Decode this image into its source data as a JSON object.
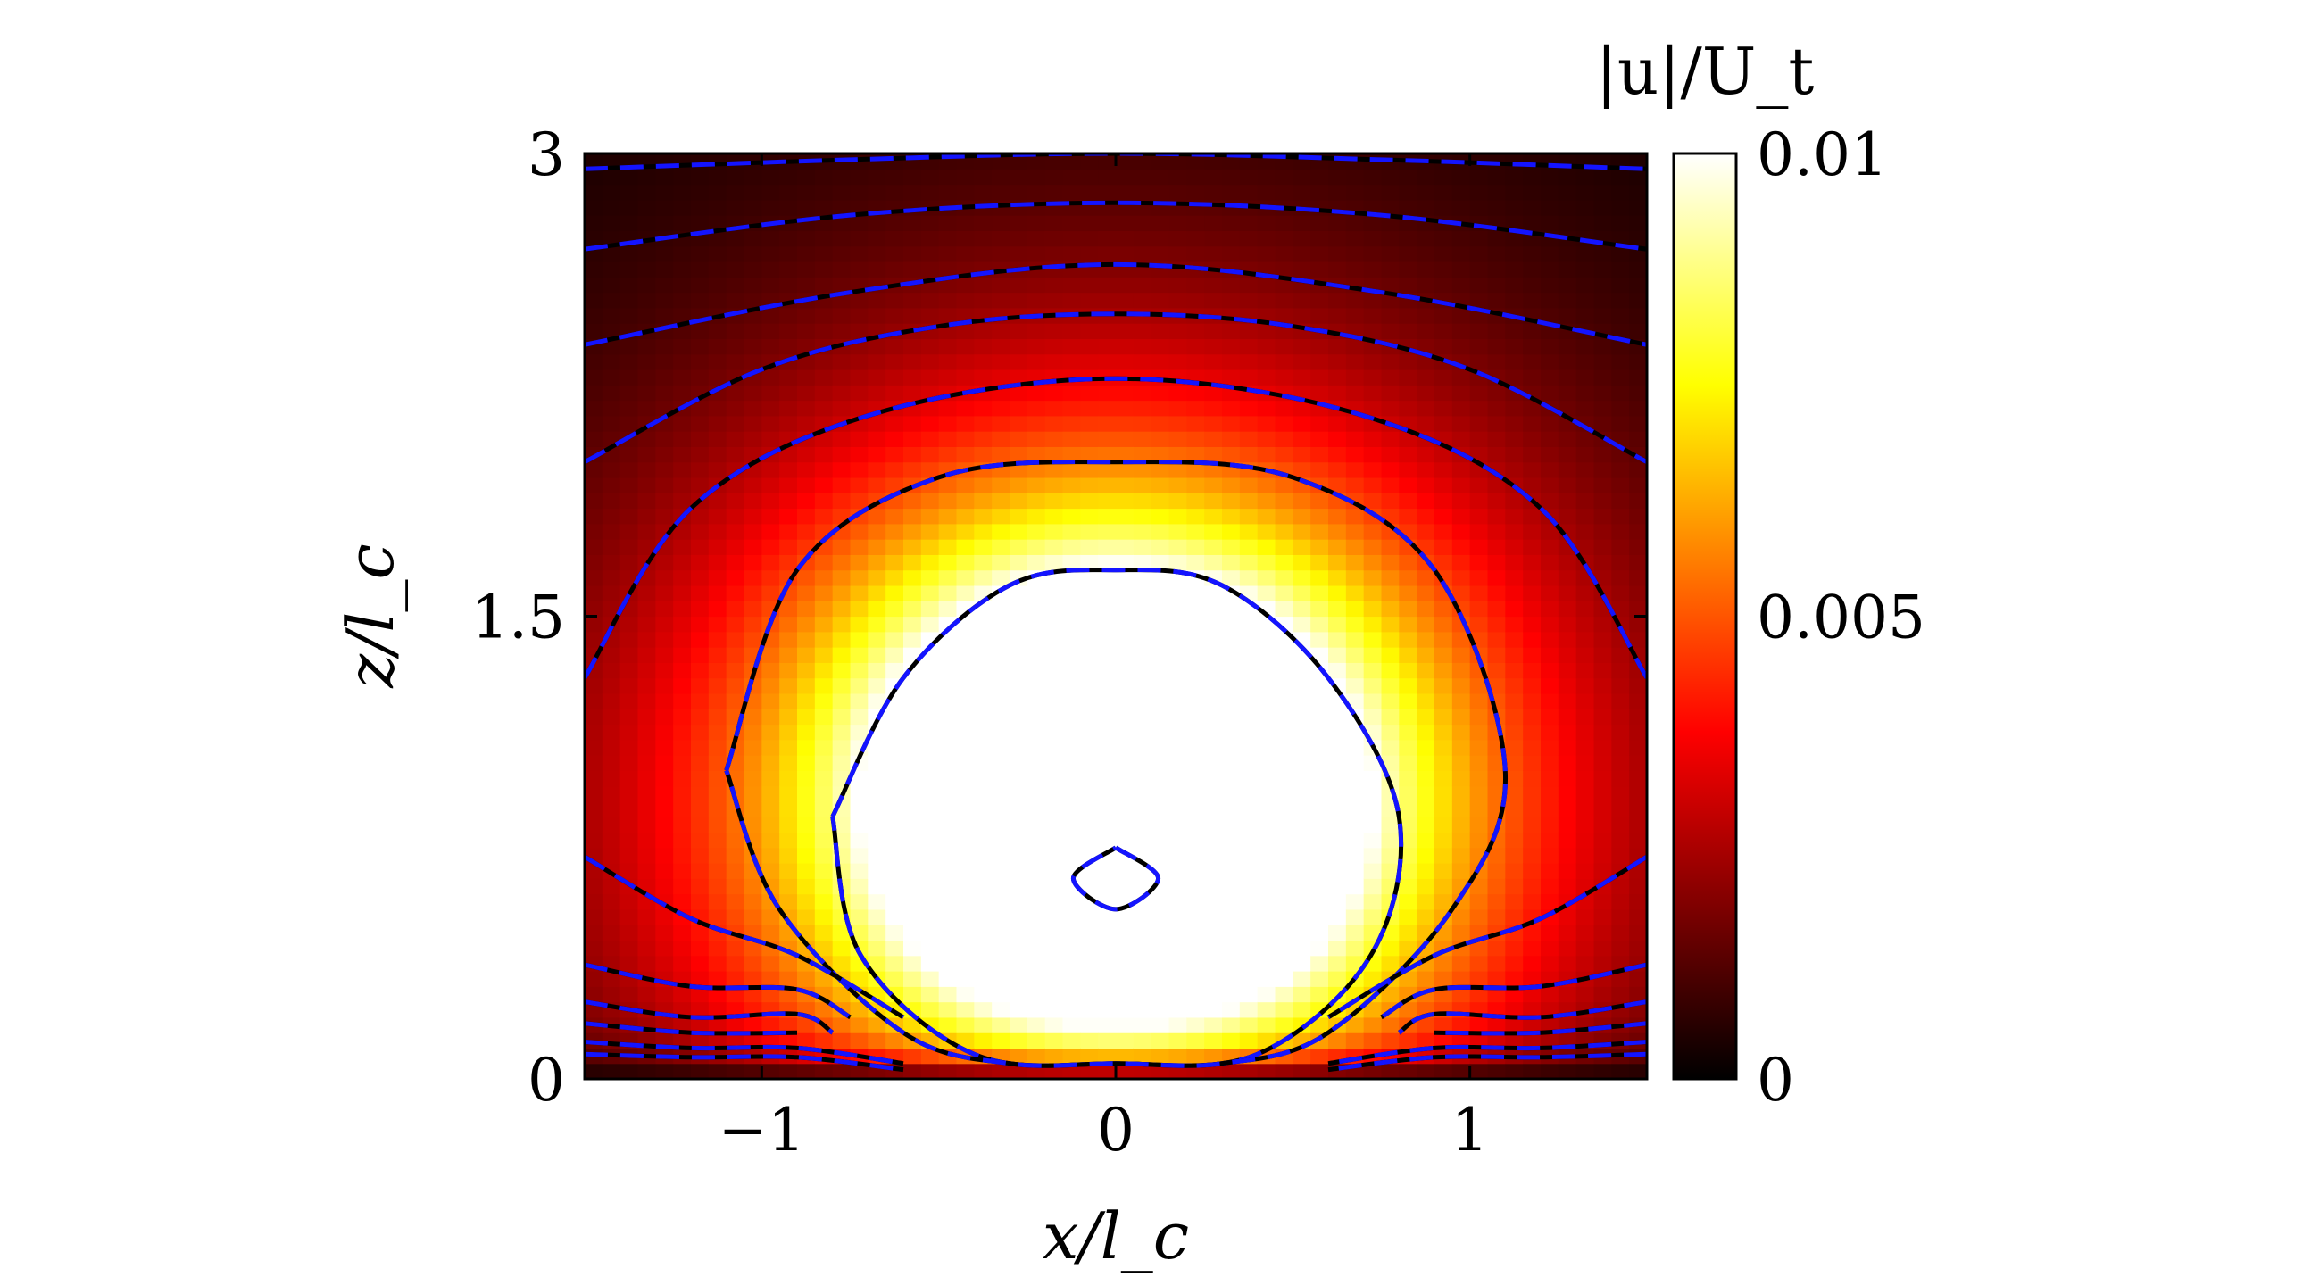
{
  "chart_data": {
    "type": "heatmap",
    "title": "",
    "xlabel": "x/l_c",
    "ylabel": "z/l_c",
    "xlim": [
      -1.5,
      1.5
    ],
    "ylim": [
      0,
      3
    ],
    "x_ticks": [
      -1,
      0,
      1
    ],
    "x_tick_labels": [
      "−1",
      "0",
      "1"
    ],
    "y_ticks": [
      0,
      1.5,
      3
    ],
    "y_tick_labels": [
      "0",
      "1.5",
      "3"
    ],
    "colorbar": {
      "title": "|u|/U_t",
      "range": [
        0,
        0.01
      ],
      "ticks": [
        0,
        0.005,
        0.01
      ],
      "tick_labels": [
        "0",
        "0.005",
        "0.01"
      ],
      "colormap": "hot",
      "colors": [
        "#000000",
        "#ff0000",
        "#ffff00",
        "#ffffff"
      ]
    },
    "field": {
      "description_values": "speed magnitude peaks (saturates above 0.01) in a roughly elliptical region centred near x=0, z=0.9, decaying to ~0.001 at the top boundary",
      "saturated_region_center": [
        0,
        0.9
      ],
      "max_value_clipped": 0.01
    },
    "contour_styles": [
      {
        "name": "solid-black",
        "color": "#000000"
      },
      {
        "name": "dashed-blue",
        "color": "#1414ff"
      }
    ],
    "contours": [
      {
        "label": "inner-ring",
        "x": [
          0,
          0.12,
          0,
          -0.12,
          0
        ],
        "z": [
          0.75,
          0.65,
          0.55,
          0.65,
          0.75
        ]
      },
      {
        "label": "level-1",
        "x": [
          -0.8,
          -0.6,
          -0.3,
          0,
          0.3,
          0.6,
          0.8,
          0.72,
          0.4,
          0,
          -0.4,
          -0.72,
          -0.8
        ],
        "z": [
          0.85,
          1.3,
          1.6,
          1.65,
          1.6,
          1.3,
          0.85,
          0.4,
          0.08,
          0.05,
          0.08,
          0.4,
          0.85
        ]
      },
      {
        "label": "level-2",
        "x": [
          -1.1,
          -0.9,
          -0.5,
          0,
          0.5,
          0.9,
          1.1,
          0.95,
          0.6,
          0.3,
          0,
          -0.3,
          -0.6,
          -0.95,
          -1.1
        ],
        "z": [
          1.0,
          1.65,
          1.95,
          2.0,
          1.95,
          1.65,
          1.0,
          0.55,
          0.15,
          0.05,
          0.05,
          0.05,
          0.15,
          0.55,
          1.0
        ]
      },
      {
        "label": "level-3",
        "x": [
          -1.5,
          -1.2,
          -0.7,
          0,
          0.7,
          1.2,
          1.5
        ],
        "z": [
          1.3,
          1.85,
          2.15,
          2.27,
          2.15,
          1.85,
          1.3
        ]
      },
      {
        "label": "level-4",
        "x": [
          -1.5,
          -1.0,
          -0.5,
          0,
          0.5,
          1.0,
          1.5
        ],
        "z": [
          2.0,
          2.3,
          2.44,
          2.48,
          2.44,
          2.3,
          2.0
        ]
      },
      {
        "label": "level-5",
        "x": [
          -1.5,
          -0.75,
          0,
          0.75,
          1.5
        ],
        "z": [
          2.38,
          2.55,
          2.64,
          2.55,
          2.38
        ]
      },
      {
        "label": "level-6",
        "x": [
          -1.5,
          -0.75,
          0,
          0.75,
          1.5
        ],
        "z": [
          2.69,
          2.8,
          2.84,
          2.8,
          2.69
        ]
      },
      {
        "label": "level-7",
        "x": [
          -1.5,
          -0.75,
          0,
          0.75,
          1.5
        ],
        "z": [
          2.95,
          2.98,
          3.0,
          2.98,
          2.95
        ]
      },
      {
        "label": "wing-1",
        "x": [
          -1.5,
          -1.2,
          -0.9,
          -0.6
        ],
        "z": [
          0.72,
          0.52,
          0.4,
          0.2
        ]
      },
      {
        "label": "wing-1r",
        "x": [
          1.5,
          1.2,
          0.9,
          0.6
        ],
        "z": [
          0.72,
          0.52,
          0.4,
          0.2
        ]
      },
      {
        "label": "wing-2",
        "x": [
          -1.5,
          -1.2,
          -0.9,
          -0.75
        ],
        "z": [
          0.37,
          0.3,
          0.29,
          0.2
        ]
      },
      {
        "label": "wing-2r",
        "x": [
          1.5,
          1.2,
          0.9,
          0.75
        ],
        "z": [
          0.37,
          0.3,
          0.29,
          0.2
        ]
      },
      {
        "label": "wing-3",
        "x": [
          -1.5,
          -1.2,
          -0.9,
          -0.8
        ],
        "z": [
          0.25,
          0.2,
          0.21,
          0.15
        ]
      },
      {
        "label": "wing-3r",
        "x": [
          1.5,
          1.2,
          0.9,
          0.8
        ],
        "z": [
          0.25,
          0.2,
          0.21,
          0.15
        ]
      },
      {
        "label": "wing-4",
        "x": [
          -1.5,
          -1.2,
          -0.9
        ],
        "z": [
          0.18,
          0.15,
          0.15
        ]
      },
      {
        "label": "wing-4r",
        "x": [
          1.5,
          1.2,
          0.9
        ],
        "z": [
          0.18,
          0.15,
          0.15
        ]
      },
      {
        "label": "wing-5",
        "x": [
          -1.5,
          -1.2,
          -0.9,
          -0.6
        ],
        "z": [
          0.12,
          0.1,
          0.1,
          0.05
        ]
      },
      {
        "label": "wing-5r",
        "x": [
          1.5,
          1.2,
          0.9,
          0.6
        ],
        "z": [
          0.12,
          0.1,
          0.1,
          0.05
        ]
      },
      {
        "label": "wing-6",
        "x": [
          -1.5,
          -1.2,
          -0.9,
          -0.6
        ],
        "z": [
          0.08,
          0.07,
          0.07,
          0.03
        ]
      },
      {
        "label": "wing-6r",
        "x": [
          1.5,
          1.2,
          0.9,
          0.6
        ],
        "z": [
          0.08,
          0.07,
          0.07,
          0.03
        ]
      }
    ]
  }
}
